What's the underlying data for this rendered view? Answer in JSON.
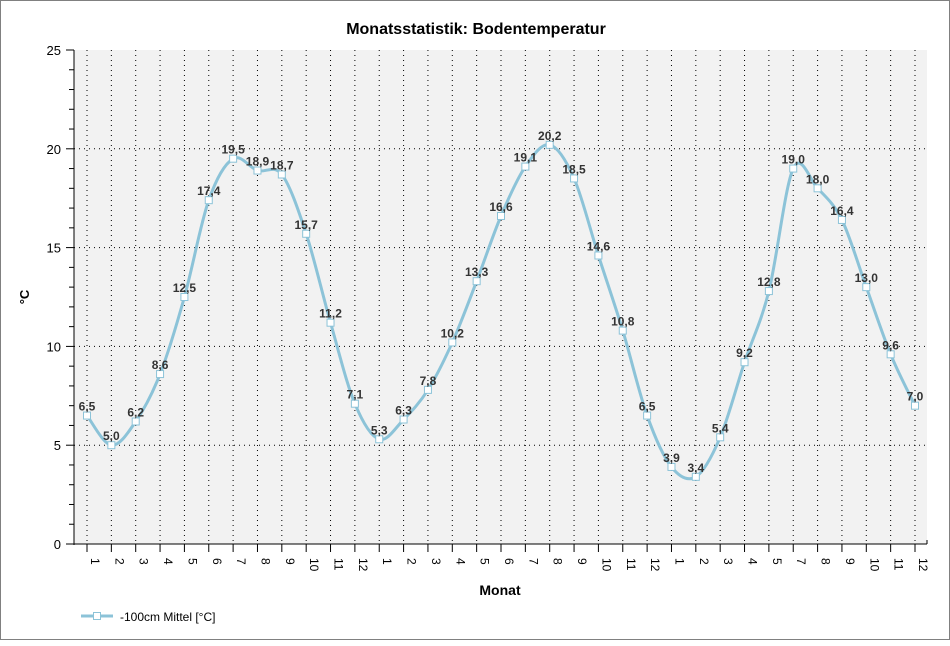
{
  "chart_data": {
    "type": "line",
    "title": "Monatsstatistik: Bodentemperatur",
    "xlabel": "Monat",
    "ylabel": "°C",
    "ylim": [
      0,
      25
    ],
    "yticks": [
      0,
      5,
      10,
      15,
      20,
      25
    ],
    "grid": true,
    "legend_position": "bottom-left",
    "categories": [
      "1",
      "2",
      "3",
      "4",
      "5",
      "6",
      "7",
      "8",
      "9",
      "10",
      "11",
      "12",
      "1",
      "2",
      "3",
      "4",
      "5",
      "6",
      "7",
      "8",
      "9",
      "10",
      "11",
      "12",
      "1",
      "2",
      "3",
      "4",
      "5",
      "7",
      "8",
      "9",
      "10",
      "11",
      "12"
    ],
    "series": [
      {
        "name": "-100cm Mittel [°C]",
        "color": "#8cc3d8",
        "values": [
          6.5,
          5.0,
          6.2,
          8.6,
          12.5,
          17.4,
          19.5,
          18.9,
          18.7,
          15.7,
          11.2,
          7.1,
          5.3,
          6.3,
          7.8,
          10.2,
          13.3,
          16.6,
          19.1,
          20.2,
          18.5,
          14.6,
          10.8,
          6.5,
          3.9,
          3.4,
          5.4,
          9.2,
          12.8,
          19.0,
          18.0,
          16.4,
          13.0,
          9.6,
          7.0
        ],
        "labels": [
          "6,5",
          "5,0",
          "6,2",
          "8,6",
          "12,5",
          "17,4",
          "19,5",
          "18,9",
          "18,7",
          "15,7",
          "11,2",
          "7,1",
          "5,3",
          "6,3",
          "7,8",
          "10,2",
          "13,3",
          "16,6",
          "19,1",
          "20,2",
          "18,5",
          "14,6",
          "10,8",
          "6,5",
          "3,9",
          "3,4",
          "5,4",
          "9,2",
          "12,8",
          "19,0",
          "18,0",
          "16,4",
          "13,0",
          "9,6",
          "7,0"
        ]
      }
    ]
  }
}
